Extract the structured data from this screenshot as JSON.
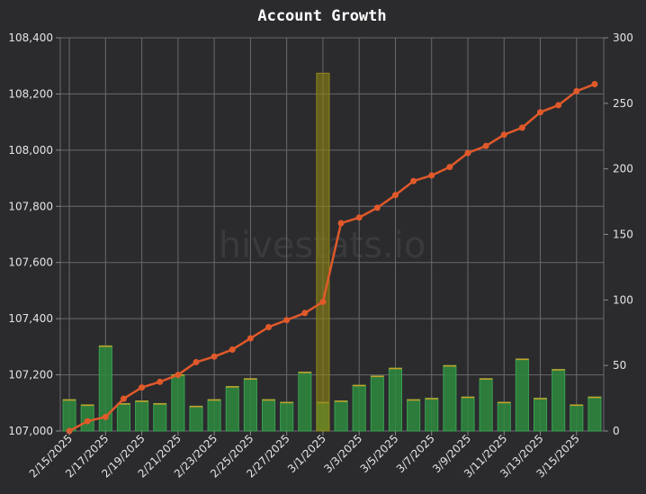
{
  "chart_data": {
    "type": "line+bar",
    "title": "Account Growth",
    "watermark": "hivestats.io",
    "xlabel": "",
    "ylabel": "",
    "dates": [
      "2/15/2025",
      "2/16/2025",
      "2/17/2025",
      "2/18/2025",
      "2/19/2025",
      "2/20/2025",
      "2/21/2025",
      "2/22/2025",
      "2/23/2025",
      "2/24/2025",
      "2/25/2025",
      "2/26/2025",
      "2/27/2025",
      "2/28/2025",
      "3/1/2025",
      "3/2/2025",
      "3/3/2025",
      "3/4/2025",
      "3/5/2025",
      "3/6/2025",
      "3/7/2025",
      "3/8/2025",
      "3/9/2025",
      "3/10/2025",
      "3/11/2025",
      "3/12/2025",
      "3/13/2025",
      "3/14/2025",
      "3/15/2025",
      "3/16/2025"
    ],
    "x_tick_labels": [
      "2/15/2025",
      "2/17/2025",
      "2/19/2025",
      "2/21/2025",
      "2/23/2025",
      "2/25/2025",
      "2/27/2025",
      "3/1/2025",
      "3/3/2025",
      "3/5/2025",
      "3/7/2025",
      "3/9/2025",
      "3/11/2025",
      "3/13/2025",
      "3/15/2025"
    ],
    "y_left": {
      "min": 107000,
      "max": 108400,
      "ticks": [
        "107,000",
        "107,200",
        "107,400",
        "107,600",
        "107,800",
        "108,000",
        "108,200",
        "108,400"
      ],
      "tick_values": [
        107000,
        107200,
        107400,
        107600,
        107800,
        108000,
        108200,
        108400
      ]
    },
    "y_right": {
      "min": 0,
      "max": 300,
      "ticks": [
        "0",
        "50",
        "100",
        "150",
        "200",
        "250",
        "300"
      ],
      "tick_values": [
        0,
        50,
        100,
        150,
        200,
        250,
        300
      ]
    },
    "grid": true,
    "series": [
      {
        "type": "line",
        "axis": "left",
        "color": "#e0592a",
        "values": [
          107000,
          107035,
          107050,
          107115,
          107155,
          107175,
          107200,
          107245,
          107265,
          107290,
          107330,
          107370,
          107395,
          107420,
          107460,
          107740,
          107760,
          107795,
          107840,
          107890,
          107910,
          107940,
          107990,
          108015,
          108055,
          108080,
          108135,
          108160,
          108210,
          108235
        ]
      },
      {
        "type": "bar",
        "axis": "right",
        "color": "#2e8b3e",
        "values": [
          24,
          20,
          65,
          21,
          23,
          21,
          43,
          19,
          24,
          34,
          40,
          24,
          22,
          45,
          22,
          23,
          35,
          42,
          48,
          24,
          25,
          50,
          26,
          40,
          22,
          55,
          25,
          47,
          20,
          26
        ]
      },
      {
        "type": "bar",
        "axis": "right",
        "color": "#7a7a1a",
        "values": [
          0,
          0,
          0,
          0,
          0,
          0,
          0,
          0,
          0,
          0,
          0,
          0,
          0,
          0,
          273,
          0,
          0,
          0,
          0,
          0,
          0,
          0,
          0,
          0,
          0,
          0,
          0,
          0,
          0,
          0
        ]
      }
    ]
  }
}
